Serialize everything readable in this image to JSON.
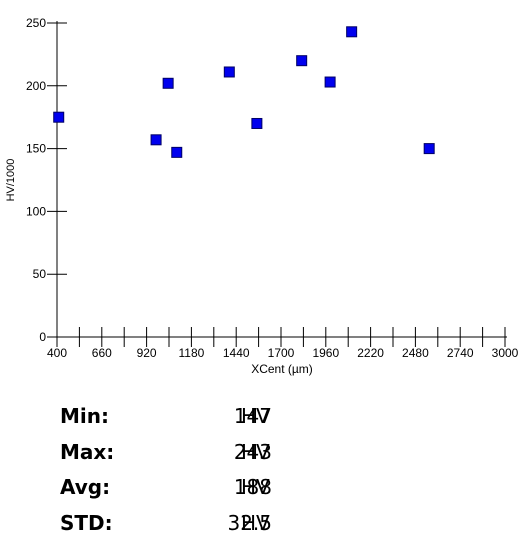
{
  "chart_data": {
    "type": "scatter",
    "xlabel": "XCent (µm)",
    "ylabel": "HV/1000",
    "xlim": [
      400,
      3000
    ],
    "ylim": [
      0,
      250
    ],
    "x_ticks": [
      "400",
      "660",
      "920",
      "1180",
      "1440",
      "1700",
      "1960",
      "2220",
      "2480",
      "2740",
      "3000"
    ],
    "x_tick_values": [
      400,
      660,
      920,
      1180,
      1440,
      1700,
      1960,
      2220,
      2480,
      2740,
      3000
    ],
    "y_ticks": [
      "0",
      "50",
      "100",
      "150",
      "200",
      "250"
    ],
    "y_tick_values": [
      0,
      50,
      100,
      150,
      200,
      250
    ],
    "marker_color": "#0000ee",
    "points": [
      {
        "x": 410,
        "y": 175
      },
      {
        "x": 975,
        "y": 157
      },
      {
        "x": 1045,
        "y": 202
      },
      {
        "x": 1095,
        "y": 147
      },
      {
        "x": 1400,
        "y": 211
      },
      {
        "x": 1560,
        "y": 170
      },
      {
        "x": 1820,
        "y": 220
      },
      {
        "x": 1985,
        "y": 203
      },
      {
        "x": 2110,
        "y": 243
      },
      {
        "x": 2560,
        "y": 150
      }
    ]
  },
  "stats": [
    {
      "label": "Min:",
      "value": "147",
      "unit": "HV"
    },
    {
      "label": "Max:",
      "value": "243",
      "unit": "HV"
    },
    {
      "label": "Avg:",
      "value": "188",
      "unit": "HV"
    },
    {
      "label": "STD:",
      "value": "32.5",
      "unit": "HV"
    }
  ]
}
